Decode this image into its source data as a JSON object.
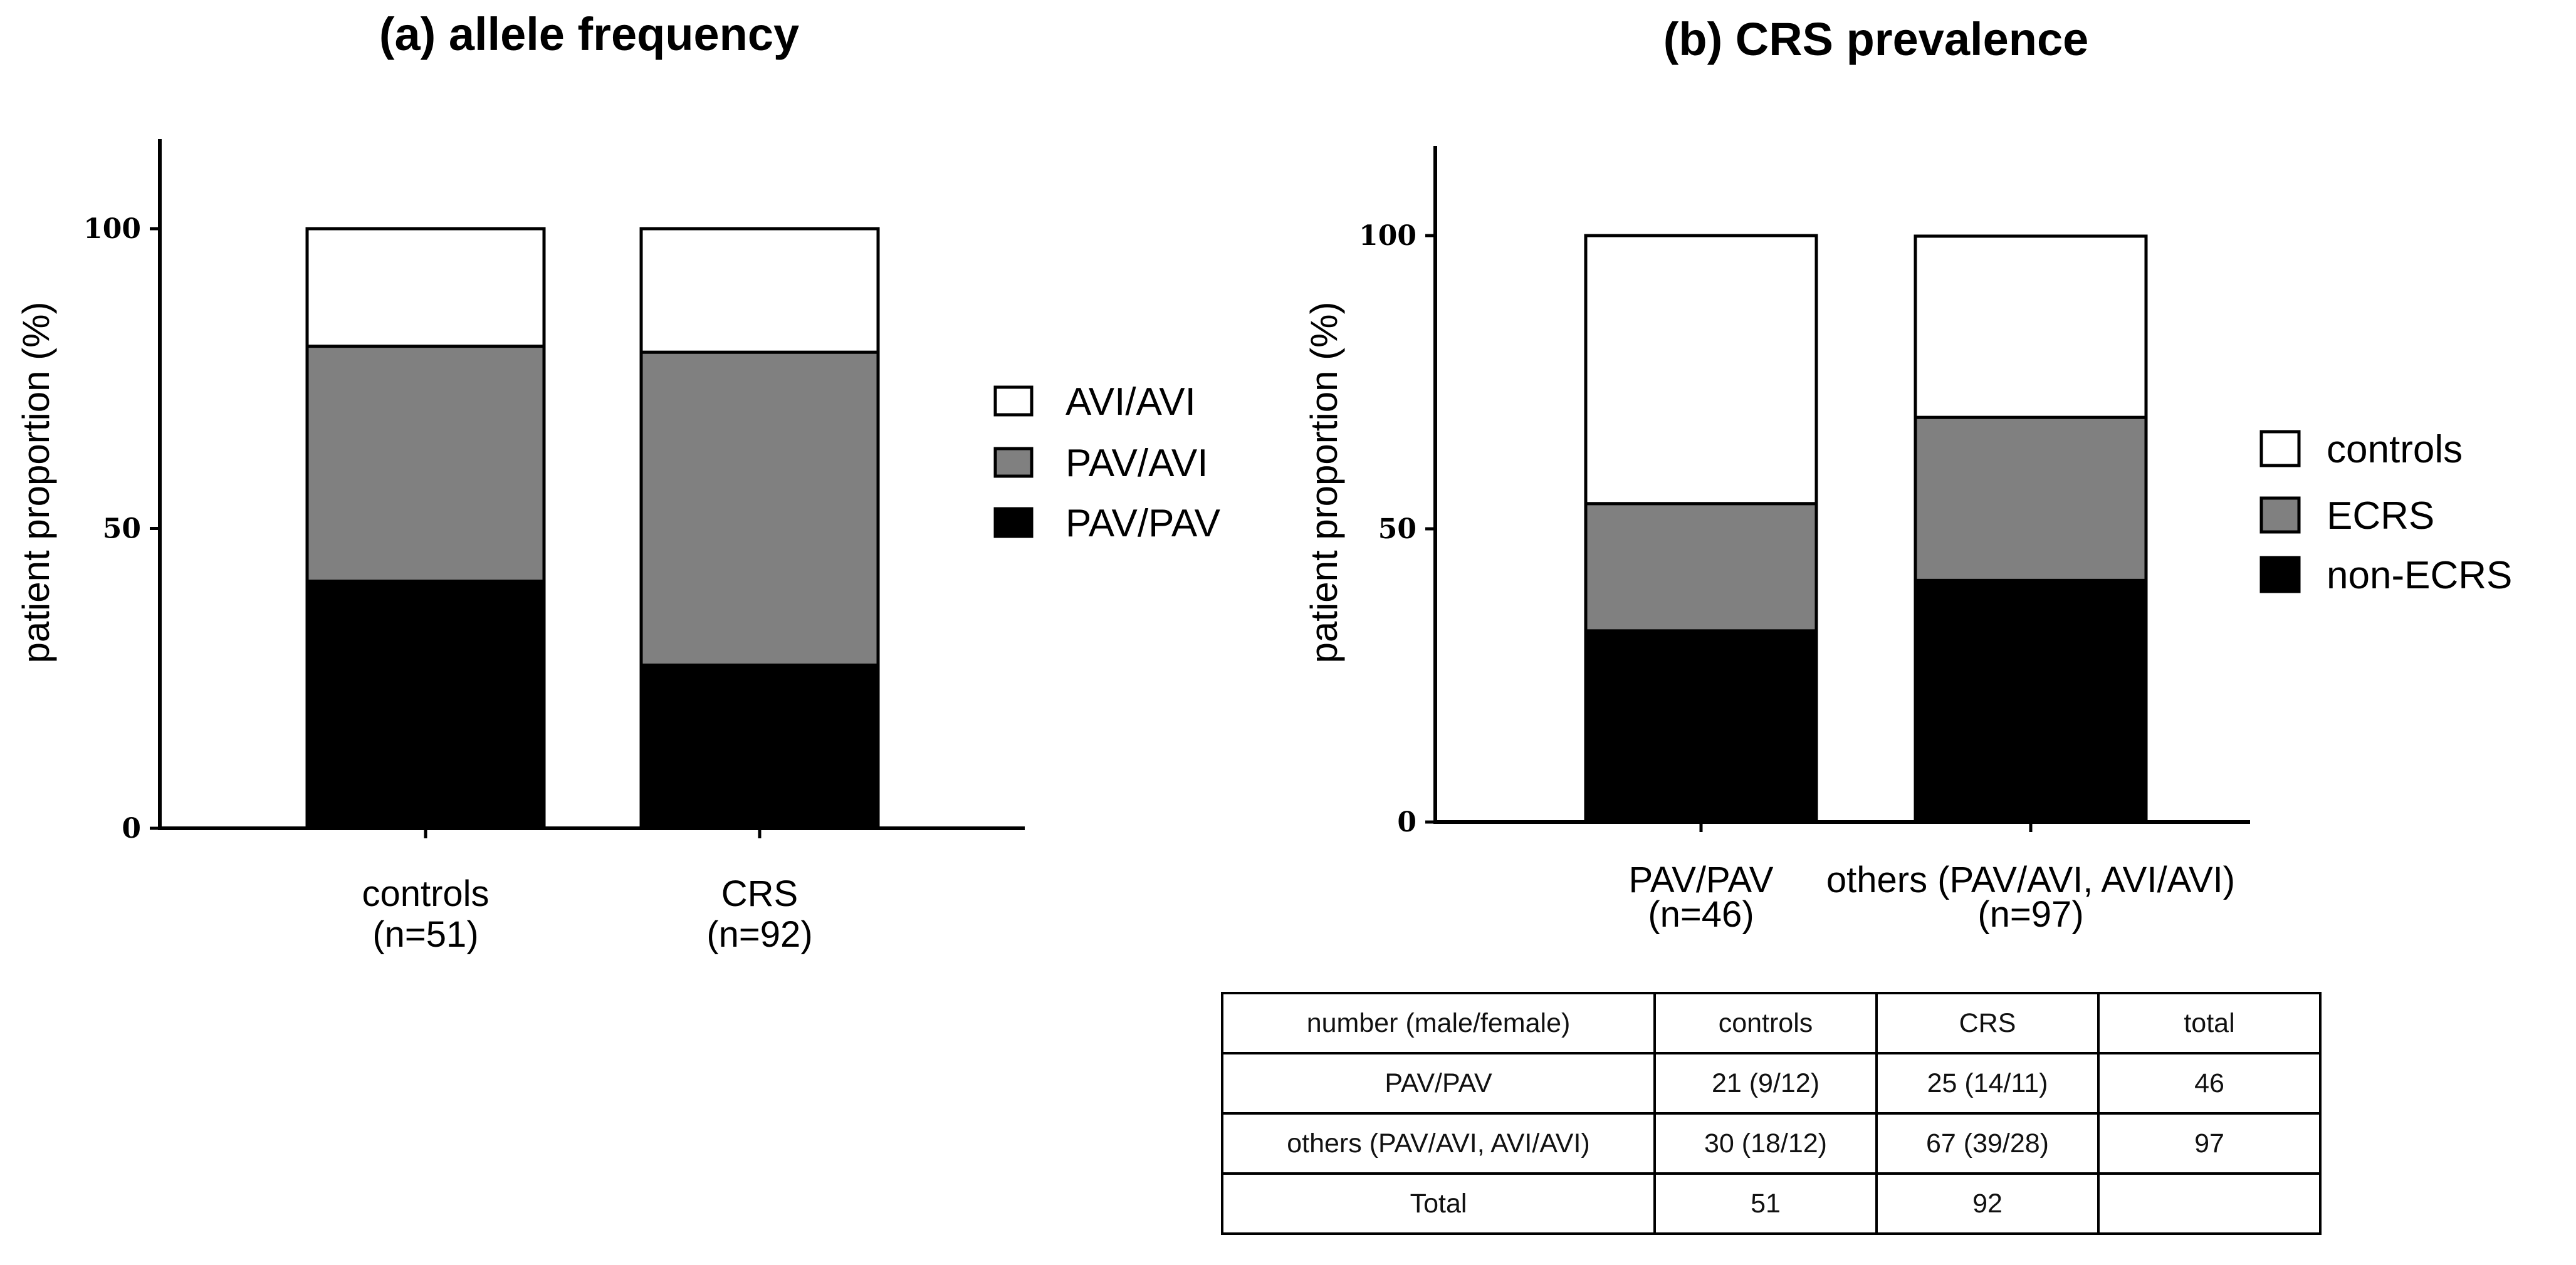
{
  "chart_data": [
    {
      "type": "bar",
      "stacked": true,
      "title": "(a) allele frequency",
      "xlabel": "",
      "ylabel": "patient proportion (%)",
      "ylim": [
        0,
        115
      ],
      "yticks": [
        "0",
        "50",
        "100"
      ],
      "categories": [
        {
          "name": "controls",
          "n": "(n=51)"
        },
        {
          "name": "CRS",
          "n": "(n=92)"
        }
      ],
      "series": [
        {
          "name": "PAV/PAV",
          "color": "#000000",
          "values": [
            41.2,
            27.2
          ]
        },
        {
          "name": "PAV/AVI",
          "color": "#808080",
          "values": [
            39.2,
            52.2
          ]
        },
        {
          "name": "AVI/AVI",
          "color": "#ffffff",
          "values": [
            19.6,
            20.6
          ]
        }
      ],
      "legend": [
        "AVI/AVI",
        "PAV/AVI",
        "PAV/PAV"
      ],
      "legend_position": "right"
    },
    {
      "type": "bar",
      "stacked": true,
      "title": "(b) CRS prevalence",
      "xlabel": "",
      "ylabel": "patient proportion (%)",
      "ylim": [
        0,
        115
      ],
      "yticks": [
        "0",
        "50",
        "100"
      ],
      "categories": [
        {
          "name": "PAV/PAV",
          "n": "(n=46)"
        },
        {
          "name": "others (PAV/AVI, AVI/AVI)",
          "n": "(n=97)"
        }
      ],
      "series": [
        {
          "name": "non-ECRS",
          "color": "#000000",
          "values": [
            32.6,
            41.2
          ]
        },
        {
          "name": "ECRS",
          "color": "#808080",
          "values": [
            21.7,
            27.8
          ]
        },
        {
          "name": "controls",
          "color": "#ffffff",
          "values": [
            45.7,
            30.9
          ]
        }
      ],
      "legend": [
        "controls",
        "ECRS",
        "non-ECRS"
      ],
      "legend_position": "right"
    }
  ],
  "table": {
    "header": [
      "number (male/female)",
      "controls",
      "CRS",
      "total"
    ],
    "rows": [
      [
        "PAV/PAV",
        "21 (9/12)",
        "25 (14/11)",
        "46"
      ],
      [
        "others (PAV/AVI, AVI/AVI)",
        "30 (18/12)",
        "67 (39/28)",
        "97"
      ],
      [
        "Total",
        "51",
        "92",
        ""
      ]
    ]
  }
}
